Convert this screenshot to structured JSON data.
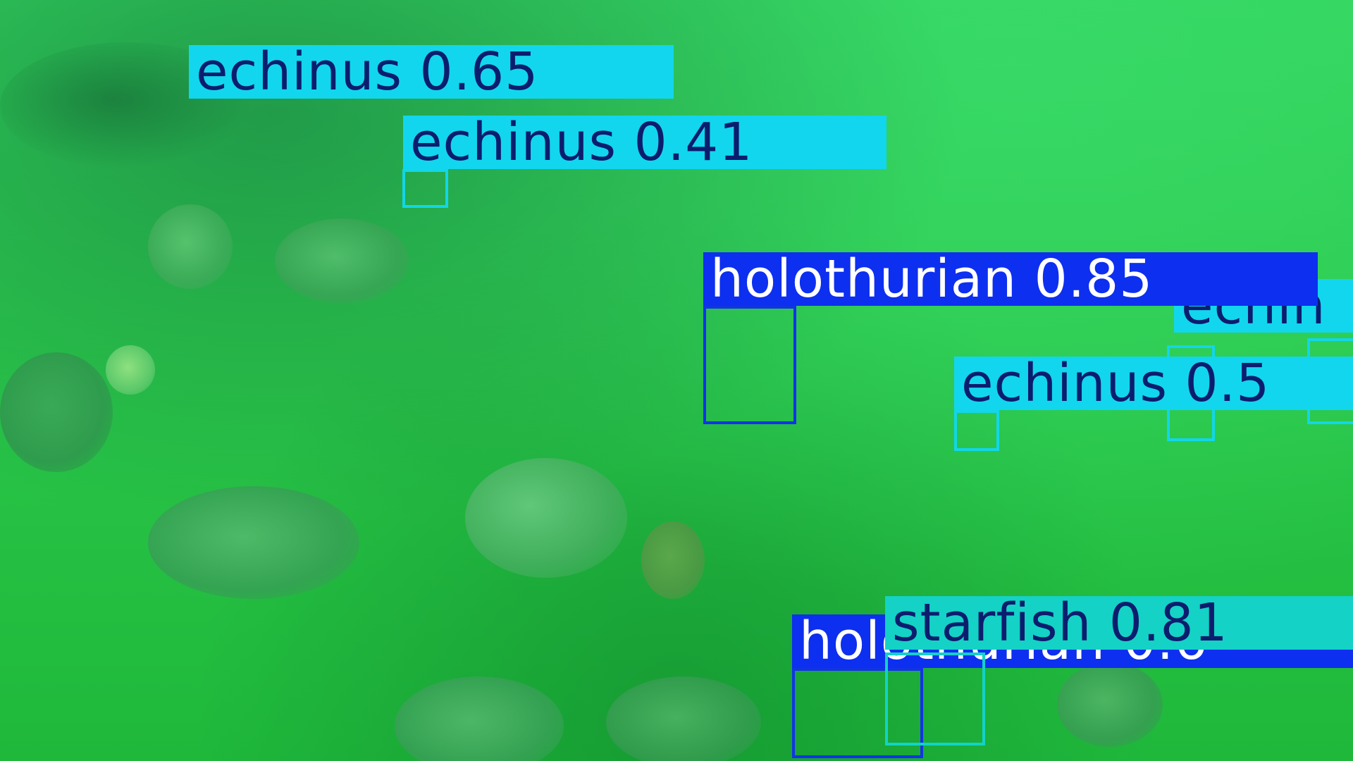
{
  "scene": {
    "description_icon": "underwater-seafloor-photo",
    "tint_color": "#2ccb4e"
  },
  "detections": [
    {
      "id": "echinus-1",
      "class": "echinus",
      "label": "echinus 0.65"
    },
    {
      "id": "echinus-2",
      "class": "echinus",
      "label": "echinus 0.41"
    },
    {
      "id": "holothurian-1",
      "class": "holothurian",
      "label": "holothurian 0.85"
    },
    {
      "id": "echinus-3",
      "class": "echinus",
      "label": "echin"
    },
    {
      "id": "echinus-4",
      "class": "echinus",
      "label": "echinus 0.5"
    },
    {
      "id": "holothurian-2",
      "class": "holothurian",
      "label": "holothurian 0.6"
    },
    {
      "id": "starfish-1",
      "class": "starfish",
      "label": "starfish 0.81"
    }
  ],
  "colors": {
    "echinus": "#12d6ee",
    "holothurian": "#0d2ff0",
    "starfish": "#14d2c6",
    "label_dark_text": "#0c1d6e",
    "label_light_text": "#ffffff"
  }
}
